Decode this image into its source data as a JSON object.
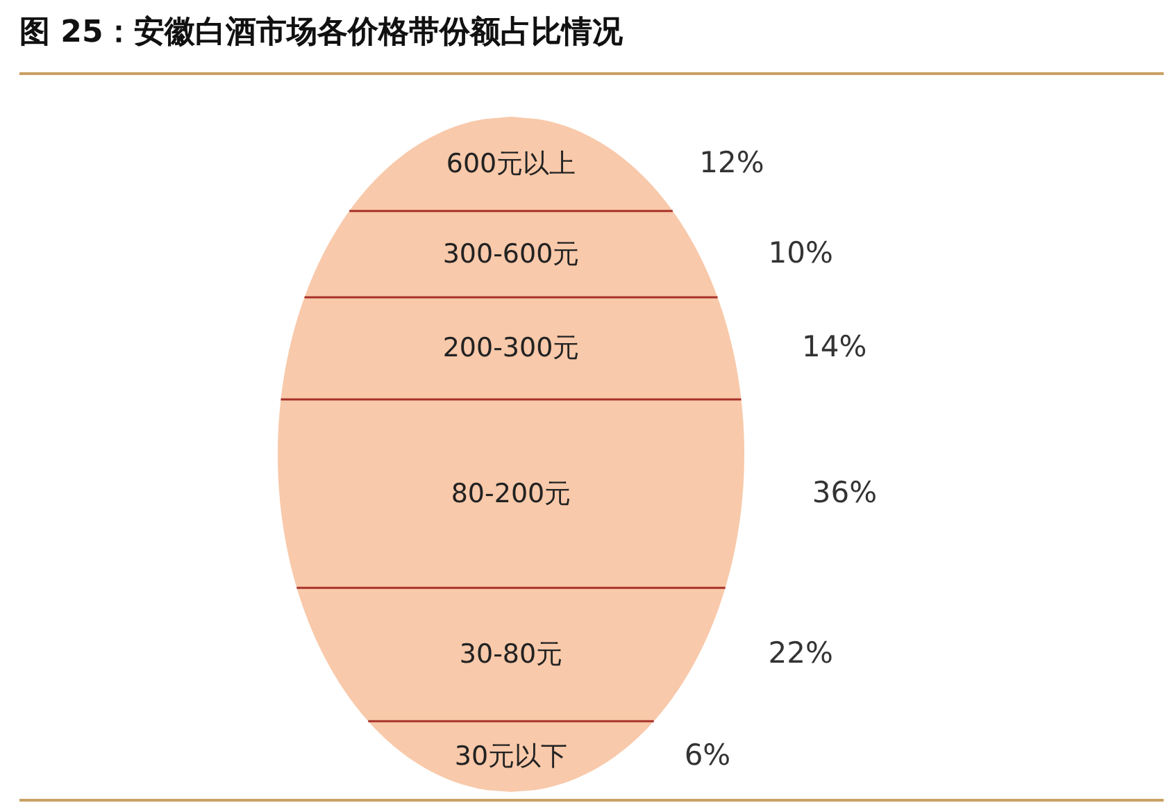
{
  "chart_data": {
    "type": "other",
    "title": "图 25：安徽白酒市场各价格带份额占比情况",
    "categories": [
      "600元以上",
      "300-600元",
      "200-300元",
      "80-200元",
      "30-80元",
      "30元以下"
    ],
    "values": [
      12,
      10,
      14,
      36,
      22,
      6
    ],
    "value_labels": [
      "12%",
      "10%",
      "14%",
      "36%",
      "22%",
      "6%"
    ],
    "colors": [
      "#f8c9aa",
      "#f8c9aa",
      "#f8c9aa",
      "#f8c9aa",
      "#f8c9aa",
      "#f8c9aa"
    ]
  }
}
